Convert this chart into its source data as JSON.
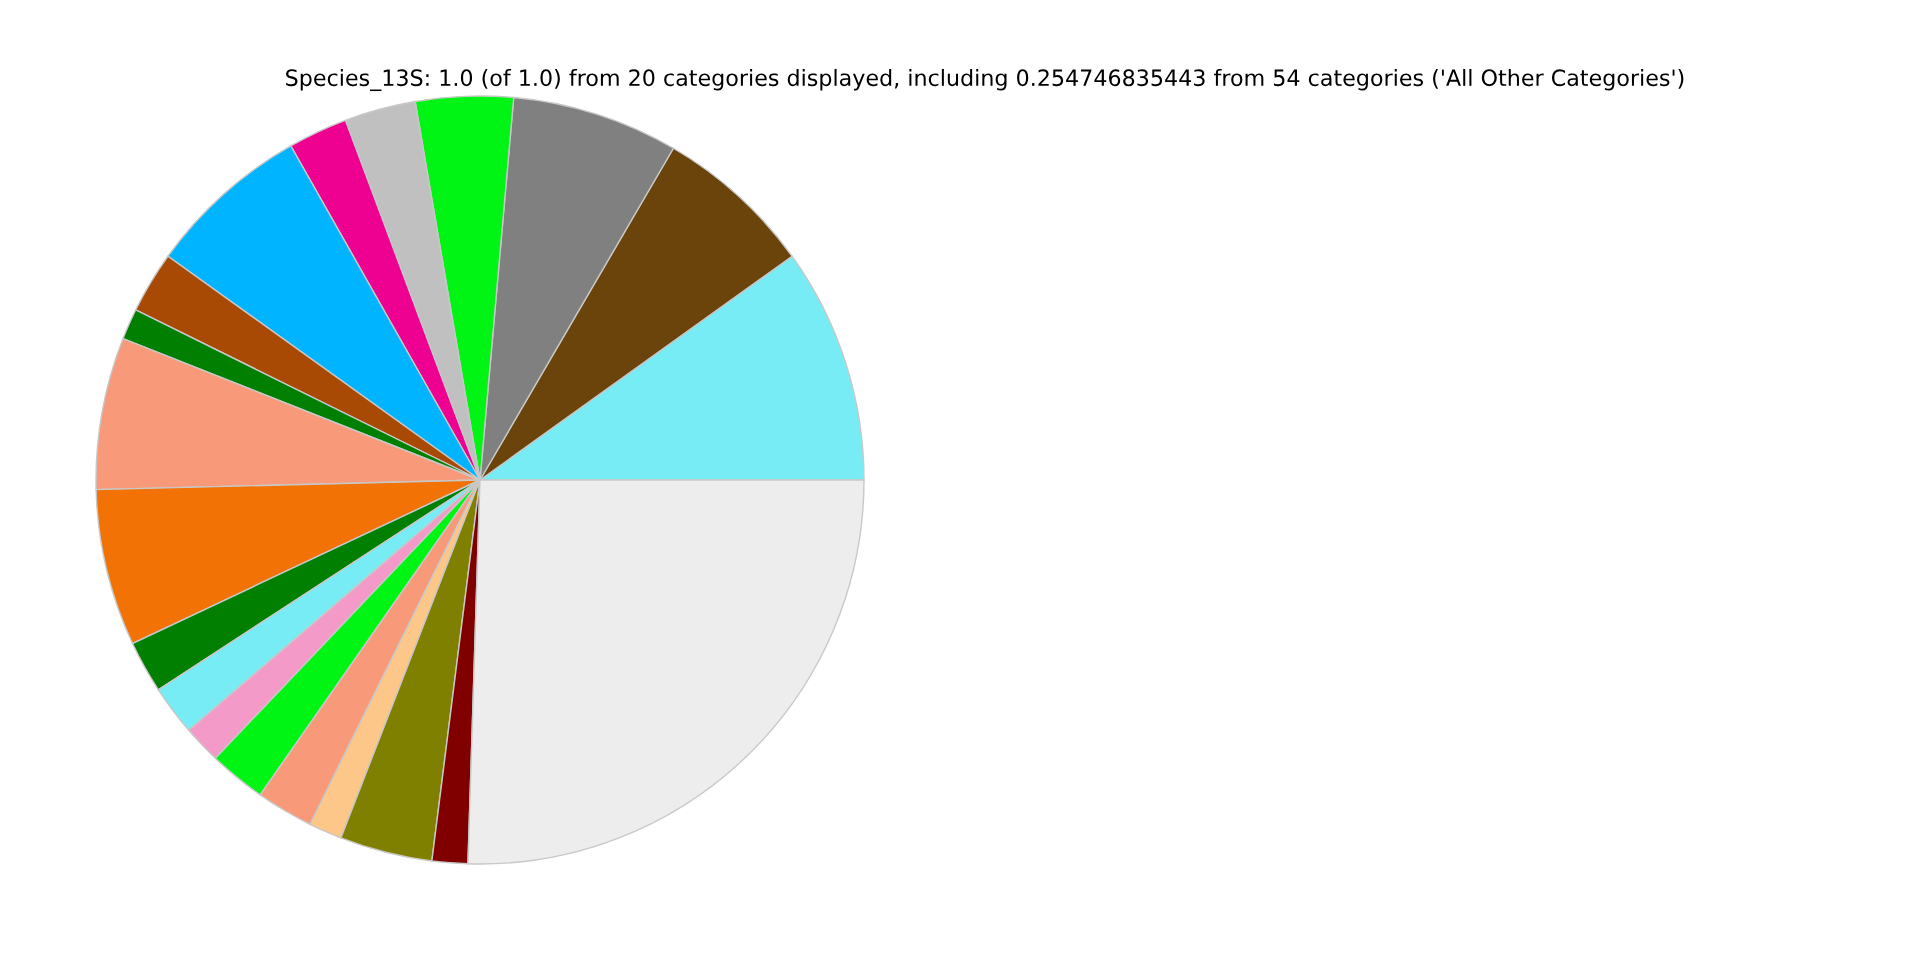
{
  "chart_data": {
    "type": "pie",
    "title": "Species_13S: 1.0 (of 1.0) from 20 categories displayed, including 0.254746835443 from 54 categories ('All Other Categories')",
    "categories": [
      null,
      null,
      null,
      null,
      null,
      null,
      null,
      null,
      null,
      null,
      null,
      null,
      null,
      null,
      null,
      null,
      null,
      null,
      null,
      null
    ],
    "values": [
      9.9,
      6.7,
      7.0,
      4.1,
      3.0,
      2.5,
      6.9,
      2.6,
      1.3,
      6.4,
      6.6,
      2.2,
      2.1,
      1.6,
      2.4,
      2.4,
      1.4,
      3.9,
      1.5,
      25.5
    ],
    "colors": [
      "#77ecf4",
      "#6b440c",
      "#808080",
      "#00f515",
      "#c0c0c0",
      "#ee0090",
      "#00b4ff",
      "#a84a04",
      "#007f00",
      "#f89a7a",
      "#f27205",
      "#007f00",
      "#77ecf4",
      "#f49ac8",
      "#00f515",
      "#f89a7a",
      "#fec78a",
      "#808000",
      "#800000",
      "#ededed"
    ],
    "legend": false
  }
}
